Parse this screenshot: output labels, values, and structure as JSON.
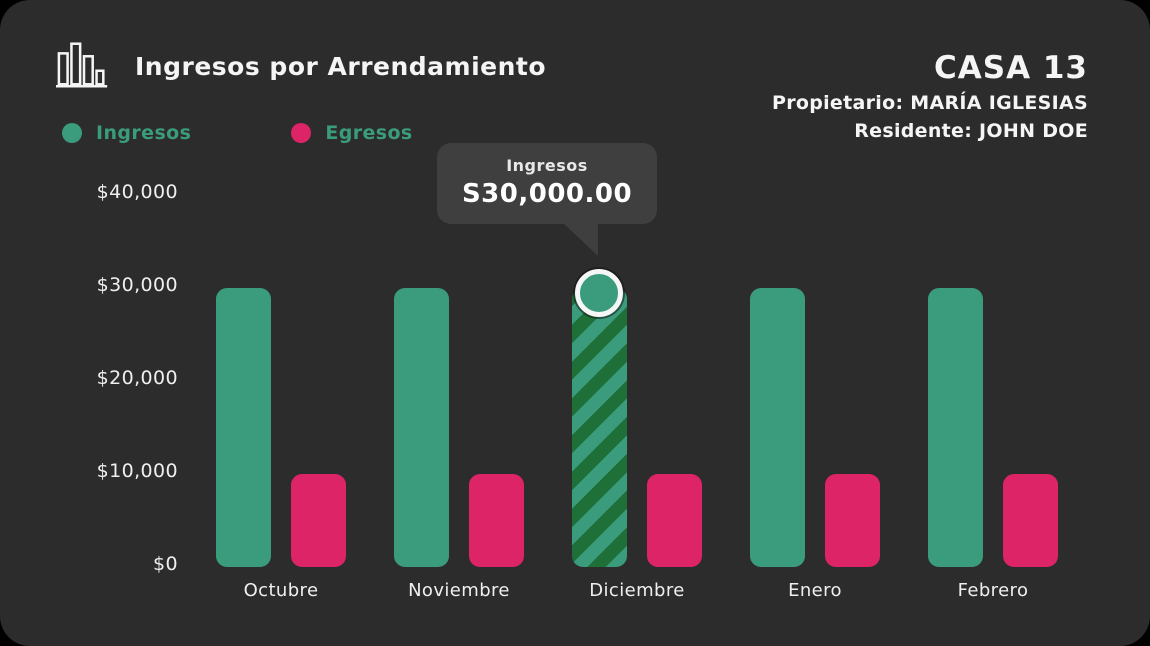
{
  "header": {
    "title": "Ingresos por Arrendamiento",
    "house": "CASA 13",
    "owner": "Propietario: MARÍA IGLESIAS",
    "resident": "Residente: JOHN DOE"
  },
  "legend": [
    {
      "label": "Ingresos",
      "color": "#3a9c7c"
    },
    {
      "label": "Egresos",
      "color": "#dd2467"
    }
  ],
  "chart_data": {
    "type": "bar",
    "title": "Ingresos por Arrendamiento",
    "categories": [
      "Octubre",
      "Noviembre",
      "Diciembre",
      "Enero",
      "Febrero"
    ],
    "series": [
      {
        "name": "Ingresos",
        "color": "#3a9c7c",
        "values": [
          30000,
          30000,
          30000,
          30000,
          30000
        ]
      },
      {
        "name": "Egresos",
        "color": "#dd2467",
        "values": [
          10000,
          10000,
          10000,
          10000,
          10000
        ]
      }
    ],
    "y_ticks": [
      {
        "label": "$40,000",
        "value": 40000
      },
      {
        "label": "$30,000",
        "value": 30000
      },
      {
        "label": "$20,000",
        "value": 20000
      },
      {
        "label": "$10,000",
        "value": 10000
      },
      {
        "label": "$0",
        "value": 0
      }
    ],
    "ylim": [
      0,
      40000
    ],
    "grid": false,
    "legend_position": "top-left",
    "highlight": {
      "category": "Diciembre",
      "series": "Ingresos",
      "base_color": "#1e6f38",
      "stripe_color": "#3a9c7c"
    },
    "tooltip": {
      "title": "Ingresos",
      "value": "S30,000.00",
      "category": "Diciembre"
    }
  },
  "colors": {
    "card_background": "#2d2c2c",
    "text": "#f5f5f5",
    "tooltip_background": "#3f3f3f",
    "ingresos": "#3a9c7c",
    "egresos": "#dd2467"
  }
}
